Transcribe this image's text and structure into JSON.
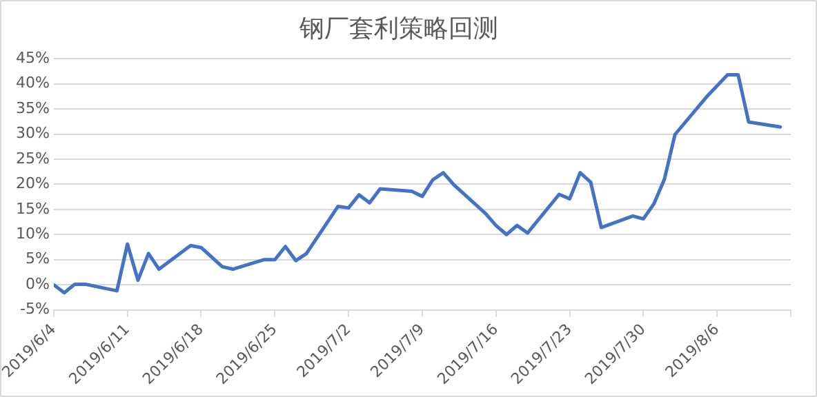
{
  "chart_data": {
    "type": "line",
    "title": "钢厂套利策略回测",
    "x": [
      "2019-06-04",
      "2019-06-05",
      "2019-06-06",
      "2019-06-07",
      "2019-06-10",
      "2019-06-11",
      "2019-06-12",
      "2019-06-13",
      "2019-06-14",
      "2019-06-17",
      "2019-06-18",
      "2019-06-20",
      "2019-06-21",
      "2019-06-24",
      "2019-06-25",
      "2019-06-26",
      "2019-06-27",
      "2019-06-28",
      "2019-07-01",
      "2019-07-02",
      "2019-07-03",
      "2019-07-04",
      "2019-07-05",
      "2019-07-08",
      "2019-07-09",
      "2019-07-10",
      "2019-07-11",
      "2019-07-12",
      "2019-07-15",
      "2019-07-16",
      "2019-07-17",
      "2019-07-18",
      "2019-07-19",
      "2019-07-22",
      "2019-07-23",
      "2019-07-24",
      "2019-07-25",
      "2019-07-26",
      "2019-07-29",
      "2019-07-30",
      "2019-07-31",
      "2019-08-01",
      "2019-08-02",
      "2019-08-05",
      "2019-08-06",
      "2019-08-07",
      "2019-08-08",
      "2019-08-09",
      "2019-08-12"
    ],
    "series": [
      {
        "color": "#4472c4",
        "values": [
          0,
          -1.6,
          0.1,
          0.1,
          -1.2,
          8.1,
          0.9,
          6.2,
          3.1,
          7.8,
          7.4,
          3.6,
          3.1,
          5.0,
          5.0,
          7.6,
          4.8,
          6.2,
          15.6,
          15.3,
          17.9,
          16.3,
          19.1,
          18.6,
          17.6,
          20.9,
          22.3,
          19.9,
          14.2,
          11.8,
          10.0,
          11.8,
          10.3,
          18.0,
          17.1,
          22.3,
          20.4,
          11.4,
          13.7,
          13.1,
          16.1,
          21.0,
          29.9,
          37.4,
          39.6,
          41.8,
          41.8,
          32.4,
          31.4
        ]
      }
    ],
    "xlim": [
      "2019-06-04",
      "2019-08-13"
    ],
    "xticks": [
      {
        "value": "2019-06-04",
        "label": "2019/6/4"
      },
      {
        "value": "2019-06-11",
        "label": "2019/6/11"
      },
      {
        "value": "2019-06-18",
        "label": "2019/6/18"
      },
      {
        "value": "2019-06-25",
        "label": "2019/6/25"
      },
      {
        "value": "2019-07-02",
        "label": "2019/7/2"
      },
      {
        "value": "2019-07-09",
        "label": "2019/7/9"
      },
      {
        "value": "2019-07-16",
        "label": "2019/7/16"
      },
      {
        "value": "2019-07-23",
        "label": "2019/7/23"
      },
      {
        "value": "2019-07-30",
        "label": "2019/7/30"
      },
      {
        "value": "2019-08-06",
        "label": "2019/8/6"
      },
      {
        "value": "2019-08-13",
        "label": null
      }
    ],
    "ylim": [
      -5,
      45
    ],
    "yticks": [
      {
        "value": -5,
        "label": "-5%"
      },
      {
        "value": 0,
        "label": "0%"
      },
      {
        "value": 5,
        "label": "5%"
      },
      {
        "value": 10,
        "label": "10%"
      },
      {
        "value": 15,
        "label": "15%"
      },
      {
        "value": 20,
        "label": "20%"
      },
      {
        "value": 25,
        "label": "25%"
      },
      {
        "value": 30,
        "label": "30%"
      },
      {
        "value": 35,
        "label": "35%"
      },
      {
        "value": 40,
        "label": "40%"
      },
      {
        "value": 45,
        "label": "45%"
      }
    ],
    "grid": "y",
    "legend": false,
    "marker": "none",
    "line_style": "solid"
  }
}
